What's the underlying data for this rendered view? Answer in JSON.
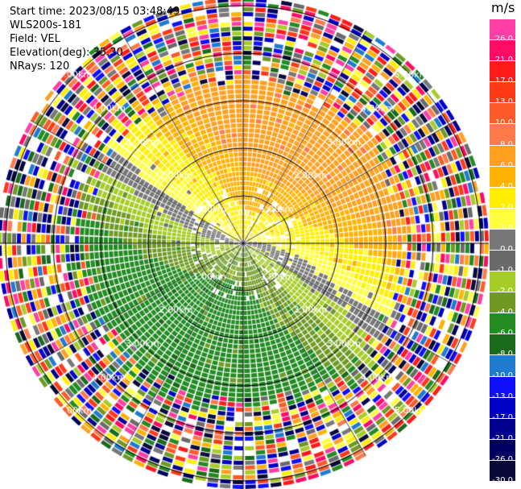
{
  "header": {
    "start_time": "Start time: 2023/08/15 03:48:49",
    "instrument": "WLS200s-181",
    "field": "Field: VEL",
    "elevation": "Elevation(deg): 35.30",
    "nrays": "NRays: 120"
  },
  "colorbar": {
    "unit": "m/s",
    "levels": [
      "26.0",
      "21.0",
      "17.0",
      "13.0",
      "10.0",
      "8.0",
      "6.0",
      "4.0",
      "2.0",
      "1.0",
      "0.0",
      "-1.0",
      "-2.0",
      "-4.0",
      "-6.0",
      "-8.0",
      "-10.0",
      "-13.0",
      "-17.0",
      "-21.0",
      "-26.0",
      "-30.0"
    ],
    "colors": [
      "#ff3ea5",
      "#ff0a64",
      "#ff1a1a",
      "#ff3a18",
      "#ff5a28",
      "#ff7a4a",
      "#ffa020",
      "#ffb300",
      "#ffee00",
      "#ffff40",
      "#787878",
      "#6a6a6a",
      "#a6cc28",
      "#6e9a24",
      "#228b22",
      "#1a6a1a",
      "#1f7bd0",
      "#1010ff",
      "#0000c8",
      "#000090",
      "#000060",
      "#0a0a3a"
    ]
  },
  "chart_data": {
    "type": "ppi",
    "field": "VEL",
    "unit": "m/s",
    "nrays": 120,
    "elevation_deg": 35.3,
    "range_rings_km": [
      1.0,
      2.0,
      3.0,
      4.0,
      5.0
    ],
    "ring_labels": [
      "1.00km",
      "2.00km",
      "3.00km",
      "4.00km",
      "5.00km"
    ],
    "pattern": {
      "near_positive_sector_deg": [
        300,
        60
      ],
      "near_negative_sector_deg": [
        120,
        240
      ],
      "noise_beyond_km": 3.4
    }
  }
}
